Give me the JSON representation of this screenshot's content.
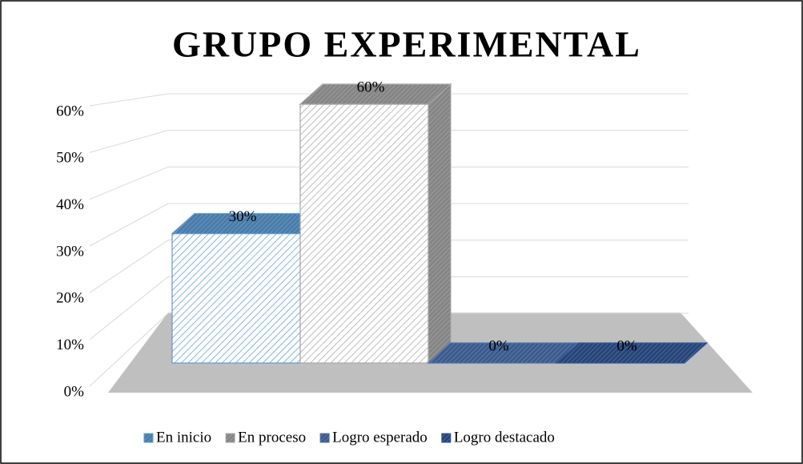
{
  "chart_data": {
    "type": "bar",
    "title": "GRUPO EXPERIMENTAL",
    "series": [
      {
        "name": "En inicio",
        "color": "#5b9bd5",
        "values": [
          30
        ],
        "value_labels": [
          "30%"
        ]
      },
      {
        "name": "En proceso",
        "color": "#a6a6a6",
        "values": [
          60
        ],
        "value_labels": [
          "60%"
        ]
      },
      {
        "name": "Logro esperado",
        "color": "#4a72b0",
        "values": [
          0
        ],
        "value_labels": [
          "0%"
        ]
      },
      {
        "name": "Logro destacado",
        "color": "#2f5597",
        "values": [
          0
        ],
        "value_labels": [
          "0%"
        ]
      }
    ],
    "ylim": [
      0,
      60
    ],
    "yticks": [
      {
        "value": 0,
        "label": "0%"
      },
      {
        "value": 10,
        "label": "10%"
      },
      {
        "value": 20,
        "label": "20%"
      },
      {
        "value": 30,
        "label": "30%"
      },
      {
        "value": 40,
        "label": "40%"
      },
      {
        "value": 50,
        "label": "50%"
      },
      {
        "value": 60,
        "label": "60%"
      }
    ],
    "grid": true,
    "legend": "bottom"
  }
}
